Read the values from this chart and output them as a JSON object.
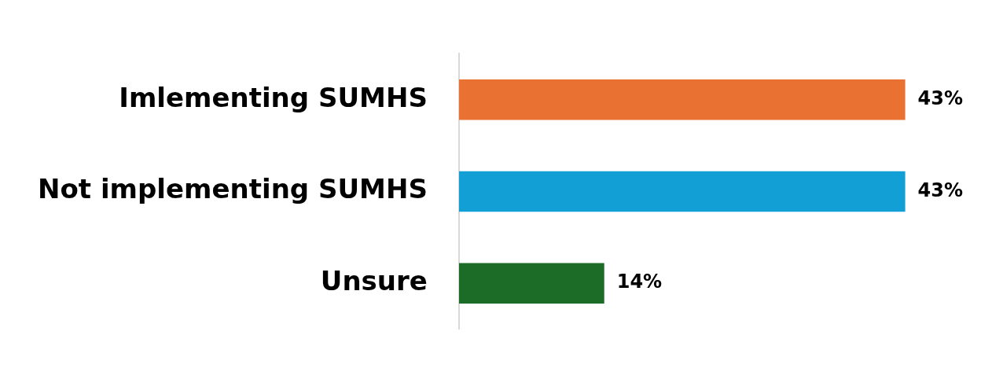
{
  "chart_data": {
    "type": "bar",
    "orientation": "horizontal",
    "categories": [
      "Imlementing SUMHS",
      "Not implementing SUMHS",
      "Unsure"
    ],
    "values": [
      43,
      43,
      14
    ],
    "colors": [
      "#e97132",
      "#119fd6",
      "#1c6b26"
    ],
    "value_labels": [
      "43%",
      "43%",
      "14%"
    ],
    "grid": false,
    "legend": false
  }
}
